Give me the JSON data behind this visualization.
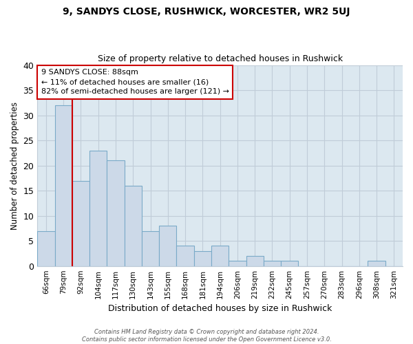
{
  "title": "9, SANDYS CLOSE, RUSHWICK, WORCESTER, WR2 5UJ",
  "subtitle": "Size of property relative to detached houses in Rushwick",
  "xlabel": "Distribution of detached houses by size in Rushwick",
  "ylabel": "Number of detached properties",
  "bin_labels": [
    "66sqm",
    "79sqm",
    "92sqm",
    "104sqm",
    "117sqm",
    "130sqm",
    "143sqm",
    "155sqm",
    "168sqm",
    "181sqm",
    "194sqm",
    "206sqm",
    "219sqm",
    "232sqm",
    "245sqm",
    "257sqm",
    "270sqm",
    "283sqm",
    "296sqm",
    "308sqm",
    "321sqm"
  ],
  "bar_heights": [
    7,
    32,
    17,
    23,
    21,
    16,
    7,
    8,
    4,
    3,
    4,
    1,
    2,
    1,
    1,
    0,
    0,
    0,
    0,
    1,
    0
  ],
  "bar_color": "#ccd9e8",
  "bar_edge_color": "#7aaac8",
  "highlight_line_color": "#cc0000",
  "ylim": [
    0,
    40
  ],
  "yticks": [
    0,
    5,
    10,
    15,
    20,
    25,
    30,
    35,
    40
  ],
  "annotation_line1": "9 SANDYS CLOSE: 88sqm",
  "annotation_line2": "← 11% of detached houses are smaller (16)",
  "annotation_line3": "82% of semi-detached houses are larger (121) →",
  "annotation_box_color": "#ffffff",
  "annotation_box_edge": "#cc0000",
  "footer_line1": "Contains HM Land Registry data © Crown copyright and database right 2024.",
  "footer_line2": "Contains public sector information licensed under the Open Government Licence v3.0.",
  "background_color": "#ffffff",
  "grid_color": "#c0ccd8"
}
